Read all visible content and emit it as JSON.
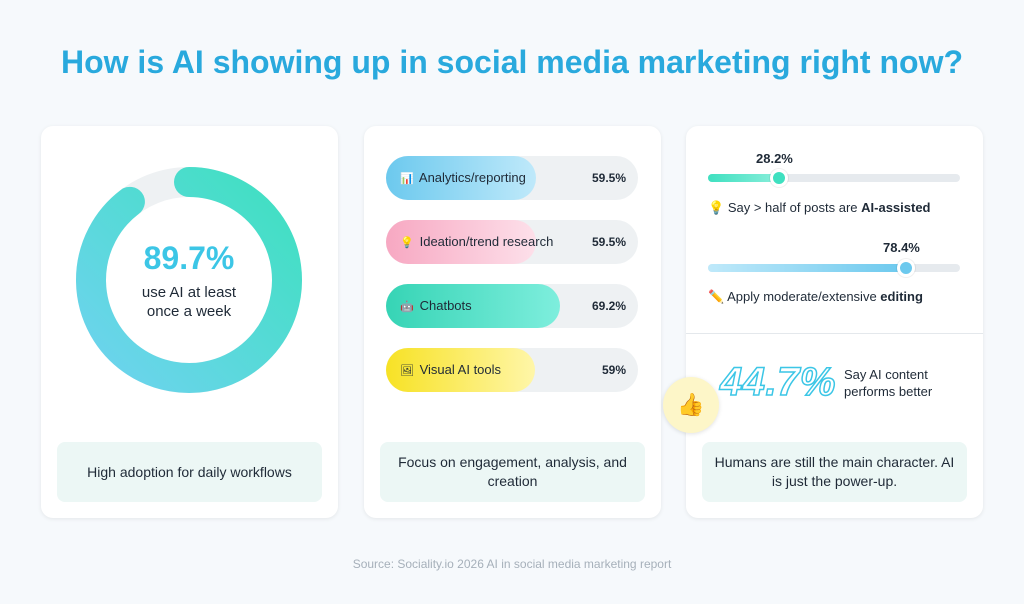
{
  "title": "How is AI showing up in social media marketing right now?",
  "source": "Source: Sociality.io 2026 AI in social media marketing report",
  "colors": {
    "title": "#29a9dd",
    "donut_start": "#6ed3ef",
    "donut_end": "#3fe0c0",
    "footer_bg": "#ecf7f5"
  },
  "card1": {
    "donut_percent_label": "89.7%",
    "donut_caption": "use AI at least once a week",
    "footer": "High adoption for daily workflows"
  },
  "card2": {
    "footer": "Focus on engagement, analysis, and creation"
  },
  "card3": {
    "slider1": {
      "value_label": "28.2%",
      "text_pre": "Say > half of posts are ",
      "text_bold": "AI-assisted",
      "icon": "lightbulb-icon"
    },
    "slider2": {
      "value_label": "78.4%",
      "text_pre": "Apply moderate/extensive ",
      "text_bold": "editing",
      "icon": "pencil-icon"
    },
    "big_percent": "44.7%",
    "perform_text": "Say AI content performs better",
    "thumb_icon": "thumbs-up-icon",
    "footer": "Humans are still the main character. AI is just the power-up."
  },
  "chart_data": [
    {
      "type": "pie",
      "title": "",
      "values": [
        89.7,
        10.3
      ],
      "labels": [
        "use AI at least once a week",
        ""
      ],
      "center_label": "89.7%"
    },
    {
      "type": "bar",
      "orientation": "horizontal",
      "categories": [
        "Analytics/reporting",
        "Ideation/trend research",
        "Chatbots",
        "Visual AI tools"
      ],
      "values": [
        59.5,
        59.5,
        69.2,
        59
      ],
      "value_labels": [
        "59.5%",
        "59.5%",
        "69.2%",
        "59%"
      ],
      "icons": [
        "bar-chart-icon",
        "lightbulb-icon",
        "robot-icon",
        "image-icon"
      ],
      "colors": [
        [
          "#bfe9fa",
          "#6cc9ee"
        ],
        [
          "#fde0ea",
          "#f7a8c2"
        ],
        [
          "#7eeedd",
          "#36d4b5"
        ],
        [
          "#fff6a8",
          "#f7e225"
        ]
      ],
      "xlim": [
        0,
        100
      ]
    },
    {
      "type": "bar",
      "orientation": "horizontal",
      "categories": [
        "Say > half of posts are AI-assisted",
        "Apply moderate/extensive editing"
      ],
      "values": [
        28.2,
        78.4
      ],
      "xlim": [
        0,
        100
      ]
    }
  ]
}
